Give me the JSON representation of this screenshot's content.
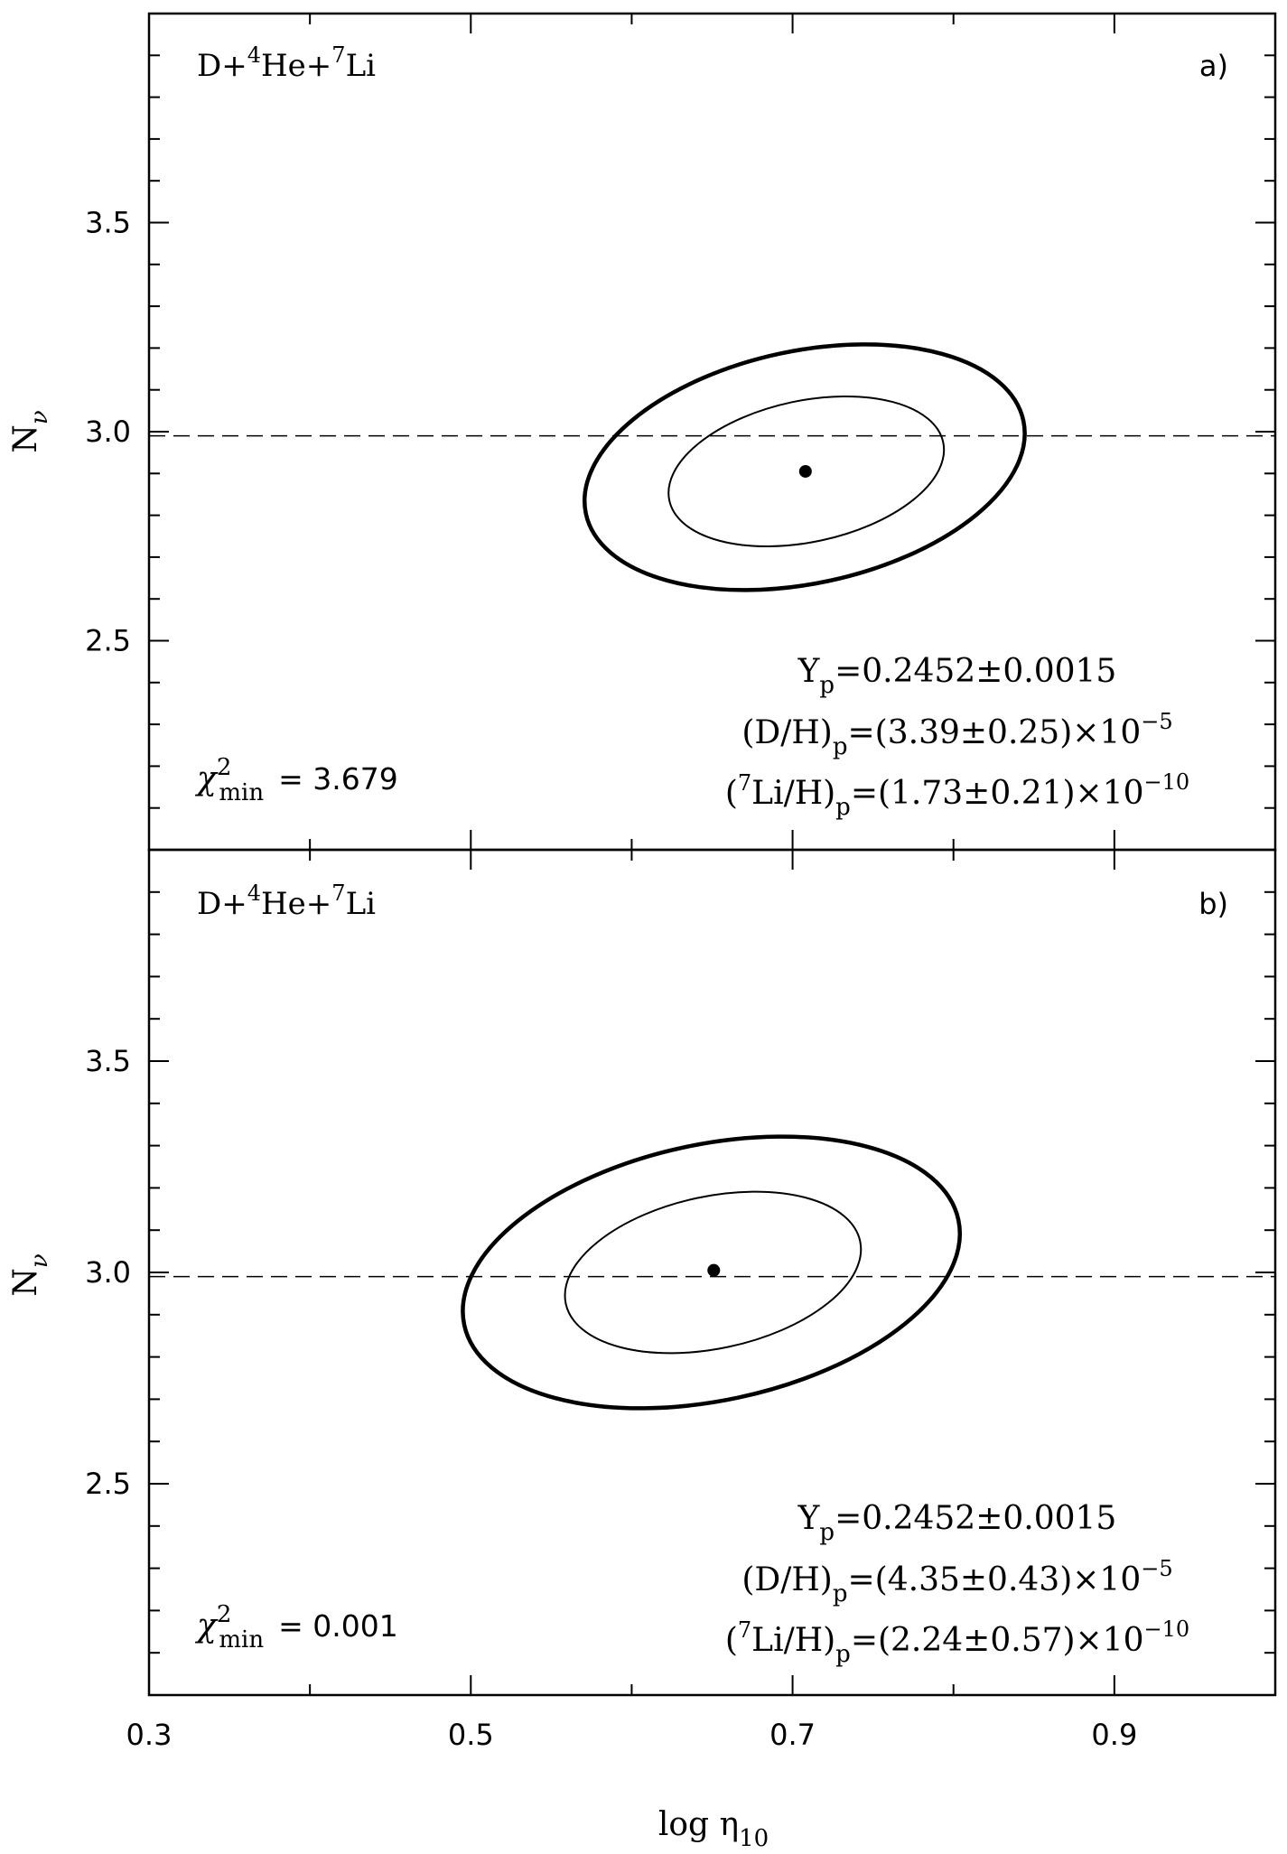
{
  "chart_data": [
    {
      "type": "contour",
      "panel_label": "a)",
      "dataset_label_parts": [
        "D+",
        "4",
        "He+",
        "7",
        "Li"
      ],
      "xlabel": "log η10",
      "ylabel": "Nν",
      "xlim": [
        0.3,
        1.0
      ],
      "ylim": [
        2.0,
        4.0
      ],
      "x_ticks": [
        "0.3",
        "0.5",
        "0.7",
        "0.9"
      ],
      "y_ticks": [
        "2.5",
        "3.0",
        "3.5"
      ],
      "reference_line": {
        "y": 2.99,
        "style": "dashed"
      },
      "best_fit": {
        "x": 0.708,
        "y": 2.905
      },
      "contours": [
        {
          "level": "inner",
          "center": [
            0.7085,
            2.905
          ],
          "rx": 0.087,
          "ry": 0.169,
          "tilt_deg": -12
        },
        {
          "level": "outer",
          "center": [
            0.7075,
            2.915
          ],
          "rx": 0.139,
          "ry": 0.278,
          "tilt_deg": -12
        }
      ],
      "chi2": {
        "symbol": "χ",
        "sup": "2",
        "sub": "min",
        "value": "= 3.679"
      },
      "annotations": {
        "yp": {
          "label": "Y",
          "sub": "p",
          "value": "=0.2452±0.0015"
        },
        "dh": {
          "label": "(D/H)",
          "sub": "p",
          "value": "=(3.39±0.25)×10",
          "exp": "−5"
        },
        "li": {
          "open": "(",
          "sup": "7",
          "label": "Li/H)",
          "sub": "p",
          "value": "=(1.73±0.21)×10",
          "exp": "−10"
        }
      }
    },
    {
      "type": "contour",
      "panel_label": "b)",
      "dataset_label_parts": [
        "D+",
        "4",
        "He+",
        "7",
        "Li"
      ],
      "xlabel": "log η10",
      "ylabel": "Nν",
      "xlim": [
        0.3,
        1.0
      ],
      "ylim": [
        2.0,
        4.0
      ],
      "x_ticks": [
        "0.3",
        "0.5",
        "0.7",
        "0.9"
      ],
      "y_ticks": [
        "2.5",
        "3.0",
        "3.5"
      ],
      "reference_line": {
        "y": 2.99,
        "style": "dashed"
      },
      "best_fit": {
        "x": 0.651,
        "y": 3.005
      },
      "contours": [
        {
          "level": "inner",
          "center": [
            0.6505,
            3.0
          ],
          "rx": 0.0935,
          "ry": 0.18,
          "tilt_deg": -12
        },
        {
          "level": "outer",
          "center": [
            0.6495,
            3.0
          ],
          "rx": 0.157,
          "ry": 0.303,
          "tilt_deg": -12
        }
      ],
      "chi2": {
        "symbol": "χ",
        "sup": "2",
        "sub": "min",
        "value": "= 0.001"
      },
      "annotations": {
        "yp": {
          "label": "Y",
          "sub": "p",
          "value": "=0.2452±0.0015"
        },
        "dh": {
          "label": "(D/H)",
          "sub": "p",
          "value": "=(4.35±0.43)×10",
          "exp": "−5"
        },
        "li": {
          "open": "(",
          "sup": "7",
          "label": "Li/H)",
          "sub": "p",
          "value": "=(2.24±0.57)×10",
          "exp": "−10"
        }
      }
    }
  ],
  "axes_text": {
    "xlabel_main": "log η",
    "xlabel_sub": "10",
    "ylabel_main": "N",
    "ylabel_sub": "ν"
  }
}
